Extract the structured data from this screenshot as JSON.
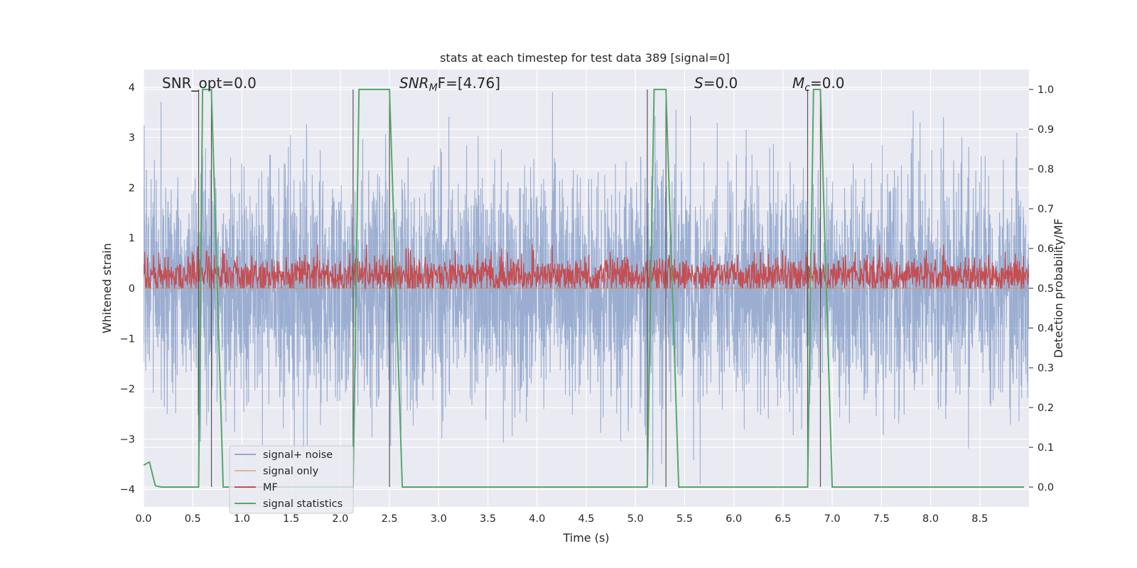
{
  "chart_data": {
    "type": "line",
    "title": "stats at each timestep for test data 389 [signal=0]",
    "xlabel": "Time (s)",
    "ylabel_left": "Whitened strain",
    "ylabel_right": "Detection probability/MF",
    "xlim": [
      0.0,
      9.0
    ],
    "ylim_left": [
      -4.35,
      4.35
    ],
    "ylim_right": [
      -0.05,
      1.05
    ],
    "x_ticks": [
      0.0,
      0.5,
      1.0,
      1.5,
      2.0,
      2.5,
      3.0,
      3.5,
      4.0,
      4.5,
      5.0,
      5.5,
      6.0,
      6.5,
      7.0,
      7.5,
      8.0,
      8.5
    ],
    "x_tick_labels": [
      "0.0",
      "0.5",
      "1.0",
      "1.5",
      "2.0",
      "2.5",
      "3.0",
      "3.5",
      "4.0",
      "4.5",
      "5.0",
      "5.5",
      "6.0",
      "6.5",
      "7.0",
      "7.5",
      "8.0",
      "8.5"
    ],
    "y_left_ticks": [
      4,
      3,
      2,
      1,
      0,
      -1,
      -2,
      -3,
      -4
    ],
    "y_left_tick_labels": [
      "4",
      "3",
      "2",
      "1",
      "0",
      "−1",
      "−2",
      "−3",
      "−4"
    ],
    "y_right_ticks": [
      1.0,
      0.9,
      0.8,
      0.7,
      0.6,
      0.5,
      0.4,
      0.3,
      0.2,
      0.1,
      0.0
    ],
    "y_right_tick_labels": [
      "1.0",
      "0.9",
      "0.8",
      "0.7",
      "0.6",
      "0.5",
      "0.4",
      "0.3",
      "0.2",
      "0.1",
      "0.0"
    ],
    "grid": true,
    "legend_position": "lower-left",
    "annotations": {
      "snr_opt": "SNR_opt=0.0",
      "snr_mf_main": "SNR",
      "snr_mf_sub": "M",
      "snr_mf_tail": "F=[4.76]",
      "s_main": "S",
      "s_tail": "=0.0",
      "mc_main": "M",
      "mc_sub": "c",
      "mc_tail": "=0.0"
    },
    "vertical_markers": [
      0.56,
      0.69,
      2.13,
      2.5,
      5.12,
      5.31,
      6.75,
      6.88
    ],
    "series": [
      {
        "name": "signal+ noise",
        "axis": "left",
        "color": "#4c72b0",
        "alpha": 0.5,
        "note_values": "dense noise, values roughly within ±4",
        "amplitude_range": [
          -3.9,
          3.9
        ]
      },
      {
        "name": "signal only",
        "axis": "left",
        "color": "#dd8452",
        "alpha": 0.5,
        "values_constant": 0.0
      },
      {
        "name": "MF",
        "axis": "right",
        "color": "#c44e52",
        "note_values": "noise between about 0.50 and 0.61",
        "range": [
          0.5,
          0.61
        ]
      },
      {
        "name": "signal statistics",
        "axis": "right",
        "color": "#55a868",
        "x": [
          0.0,
          0.06,
          0.12,
          0.18,
          0.56,
          0.6,
          0.69,
          0.81,
          2.13,
          2.19,
          2.5,
          2.63,
          5.12,
          5.19,
          5.31,
          5.44,
          6.75,
          6.81,
          6.88,
          7.0,
          8.95
        ],
        "y": [
          0.055,
          0.063,
          0.003,
          0.0,
          0.0,
          1.0,
          1.0,
          0.0,
          0.0,
          1.0,
          1.0,
          0.0,
          0.0,
          1.0,
          1.0,
          0.0,
          0.0,
          1.0,
          1.0,
          0.0,
          0.0
        ]
      }
    ]
  }
}
